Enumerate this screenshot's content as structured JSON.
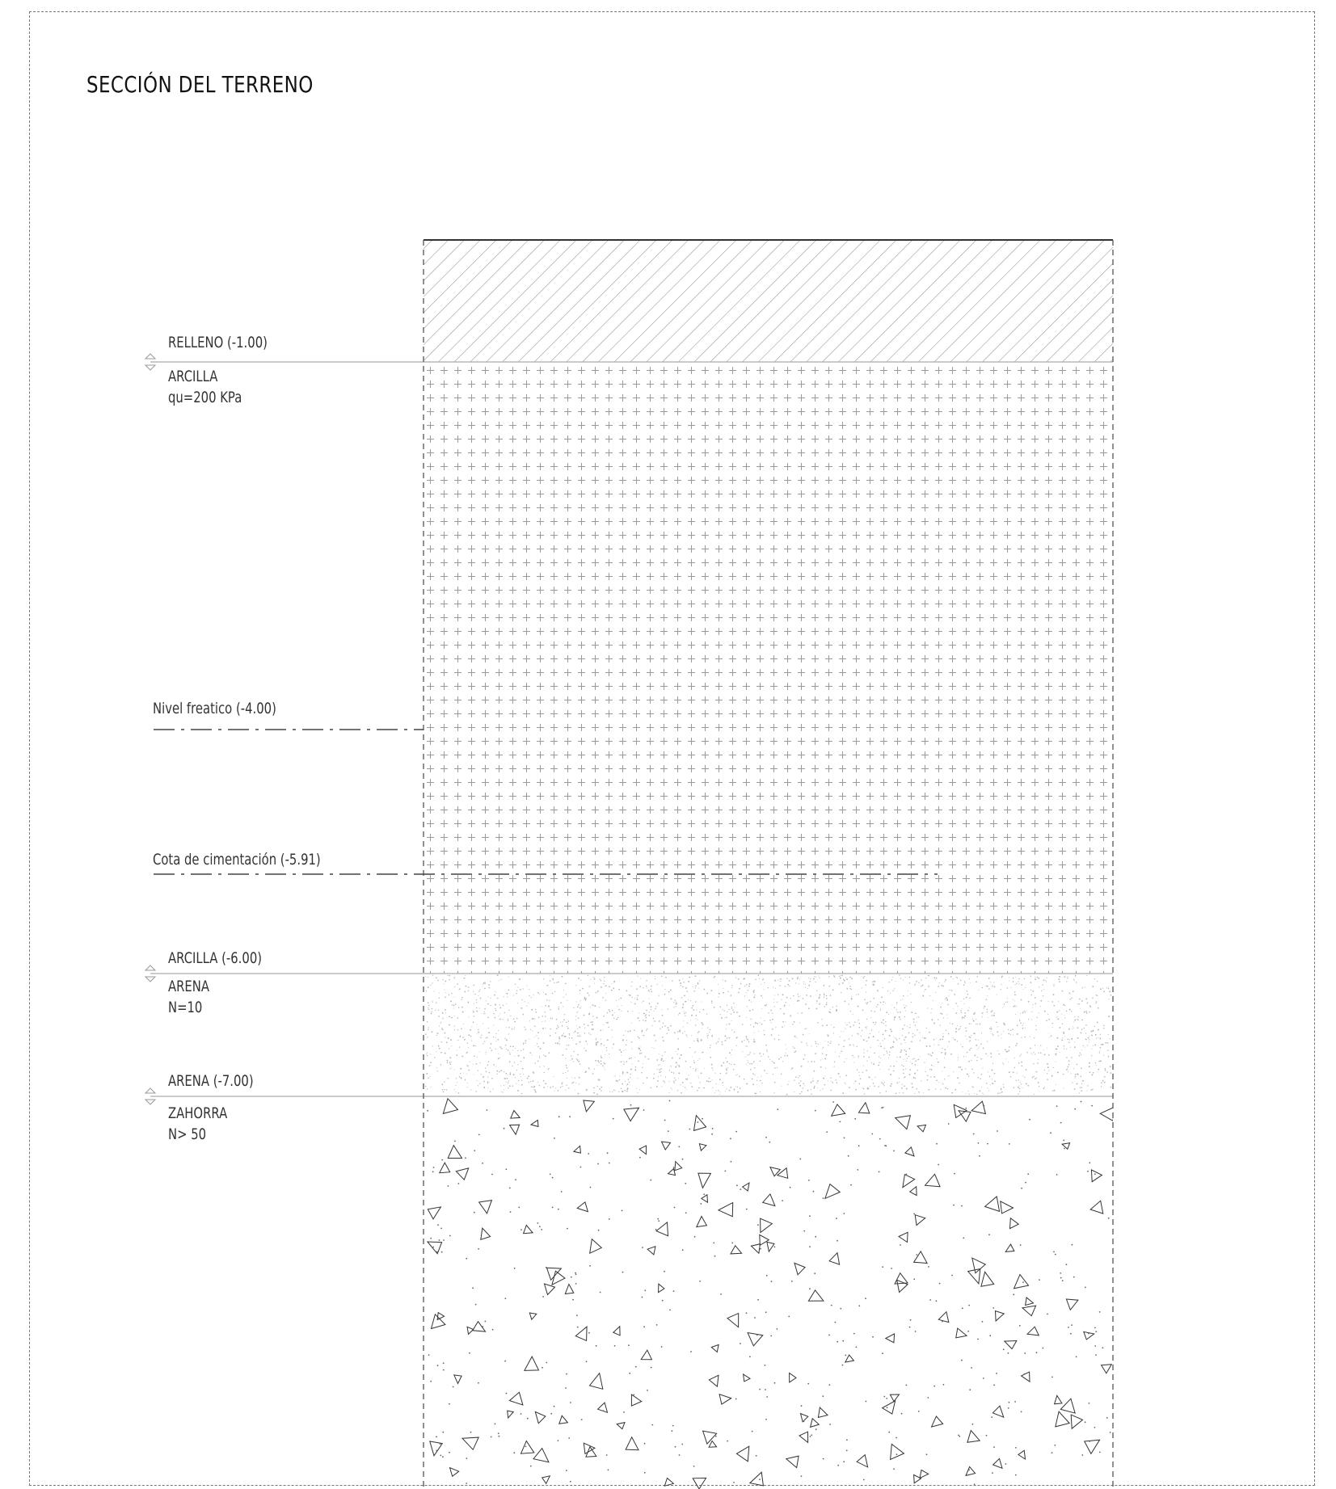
{
  "title": "SECCIÓN DEL TERRENO",
  "layers": [
    {
      "top_label": "RELLENO (-1.00)",
      "name": "ARCILLA",
      "property": "qu=200 KPa"
    },
    {
      "top_label": "ARCILLA  (-6.00)",
      "name": "ARENA",
      "property": "N=10"
    },
    {
      "top_label": "ARENA (-7.00)",
      "name": "ZAHORRA",
      "property": "N> 50"
    }
  ],
  "levels": {
    "water_table": "Nivel freatico (-4.00)",
    "foundation": "Cota de cimentación (-5.91)"
  },
  "colors": {
    "line": "#555555",
    "hatch": "#8a8a8a",
    "frame": "#777777"
  }
}
